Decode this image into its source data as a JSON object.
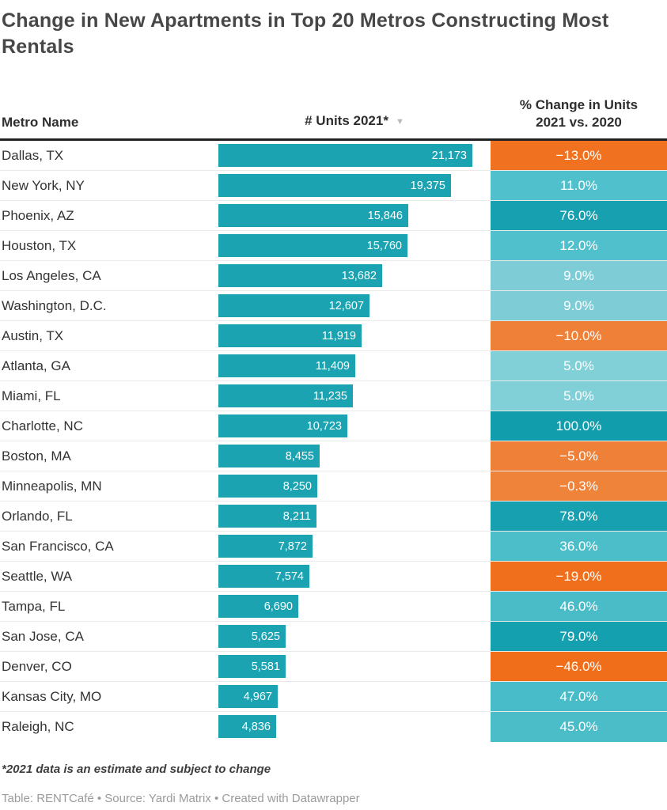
{
  "title": "Change in New Apartments in Top 20 Metros Constructing Most Rentals",
  "header": {
    "metro_label": "Metro Name",
    "units_label": "# Units 2021*",
    "sort_icon": "▼",
    "pct_label_line1": "% Change in Units",
    "pct_label_line2": "2021 vs. 2020"
  },
  "colors": {
    "bar": "#1ba3b2",
    "header_border": "#212121",
    "positive_strong": "#129dac",
    "positive_mid": "#4abdc9",
    "positive_light": "#7ecdd6",
    "negative_strong": "#f07120",
    "negative_mid": "#ee8037"
  },
  "chart_data": {
    "type": "table",
    "title": "Change in New Apartments in Top 20 Metros Constructing Most Rentals",
    "columns": [
      "Metro Name",
      "# Units 2021*",
      "% Change in Units 2021 vs. 2020"
    ],
    "max_units": 21173,
    "rows": [
      {
        "metro": "Dallas, TX",
        "units": 21173,
        "units_label": "21,173",
        "pct": -13.0,
        "pct_label": "−13.0%",
        "pct_color": "#f07120"
      },
      {
        "metro": "New York, NY",
        "units": 19375,
        "units_label": "19,375",
        "pct": 11.0,
        "pct_label": "11.0%",
        "pct_color": "#50c0cc"
      },
      {
        "metro": "Phoenix, AZ",
        "units": 15846,
        "units_label": "15,846",
        "pct": 76.0,
        "pct_label": "76.0%",
        "pct_color": "#17a0b0"
      },
      {
        "metro": "Houston, TX",
        "units": 15760,
        "units_label": "15,760",
        "pct": 12.0,
        "pct_label": "12.0%",
        "pct_color": "#50c0cc"
      },
      {
        "metro": "Los Angeles, CA",
        "units": 13682,
        "units_label": "13,682",
        "pct": 9.0,
        "pct_label": "9.0%",
        "pct_color": "#7ecdd6"
      },
      {
        "metro": "Washington, D.C.",
        "units": 12607,
        "units_label": "12,607",
        "pct": 9.0,
        "pct_label": "9.0%",
        "pct_color": "#7ecdd6"
      },
      {
        "metro": "Austin, TX",
        "units": 11919,
        "units_label": "11,919",
        "pct": -10.0,
        "pct_label": "−10.0%",
        "pct_color": "#ee8037"
      },
      {
        "metro": "Atlanta, GA",
        "units": 11409,
        "units_label": "11,409",
        "pct": 5.0,
        "pct_label": "5.0%",
        "pct_color": "#81cfd7"
      },
      {
        "metro": "Miami, FL",
        "units": 11235,
        "units_label": "11,235",
        "pct": 5.0,
        "pct_label": "5.0%",
        "pct_color": "#81cfd7"
      },
      {
        "metro": "Charlotte, NC",
        "units": 10723,
        "units_label": "10,723",
        "pct": 100.0,
        "pct_label": "100.0%",
        "pct_color": "#129dac"
      },
      {
        "metro": "Boston, MA",
        "units": 8455,
        "units_label": "8,455",
        "pct": -5.0,
        "pct_label": "−5.0%",
        "pct_color": "#ee8037"
      },
      {
        "metro": "Minneapolis, MN",
        "units": 8250,
        "units_label": "8,250",
        "pct": -0.3,
        "pct_label": "−0.3%",
        "pct_color": "#ee8339"
      },
      {
        "metro": "Orlando, FL",
        "units": 8211,
        "units_label": "8,211",
        "pct": 78.0,
        "pct_label": "78.0%",
        "pct_color": "#16a0b0"
      },
      {
        "metro": "San Francisco, CA",
        "units": 7872,
        "units_label": "7,872",
        "pct": 36.0,
        "pct_label": "36.0%",
        "pct_color": "#4cbeca"
      },
      {
        "metro": "Seattle, WA",
        "units": 7574,
        "units_label": "7,574",
        "pct": -19.0,
        "pct_label": "−19.0%",
        "pct_color": "#f06f1d"
      },
      {
        "metro": "Tampa, FL",
        "units": 6690,
        "units_label": "6,690",
        "pct": 46.0,
        "pct_label": "46.0%",
        "pct_color": "#49bcc8"
      },
      {
        "metro": "San Jose, CA",
        "units": 5625,
        "units_label": "5,625",
        "pct": 79.0,
        "pct_label": "79.0%",
        "pct_color": "#15a0b0"
      },
      {
        "metro": "Denver, CO",
        "units": 5581,
        "units_label": "5,581",
        "pct": -46.0,
        "pct_label": "−46.0%",
        "pct_color": "#f06d1a"
      },
      {
        "metro": "Kansas City, MO",
        "units": 4967,
        "units_label": "4,967",
        "pct": 47.0,
        "pct_label": "47.0%",
        "pct_color": "#48bcc8"
      },
      {
        "metro": "Raleigh, NC",
        "units": 4836,
        "units_label": "4,836",
        "pct": 45.0,
        "pct_label": "45.0%",
        "pct_color": "#4abdc9"
      }
    ]
  },
  "footnote": "*2021 data is an estimate and subject to change",
  "footer": "Table: RENTCafé • Source: Yardi Matrix • Created with Datawrapper"
}
